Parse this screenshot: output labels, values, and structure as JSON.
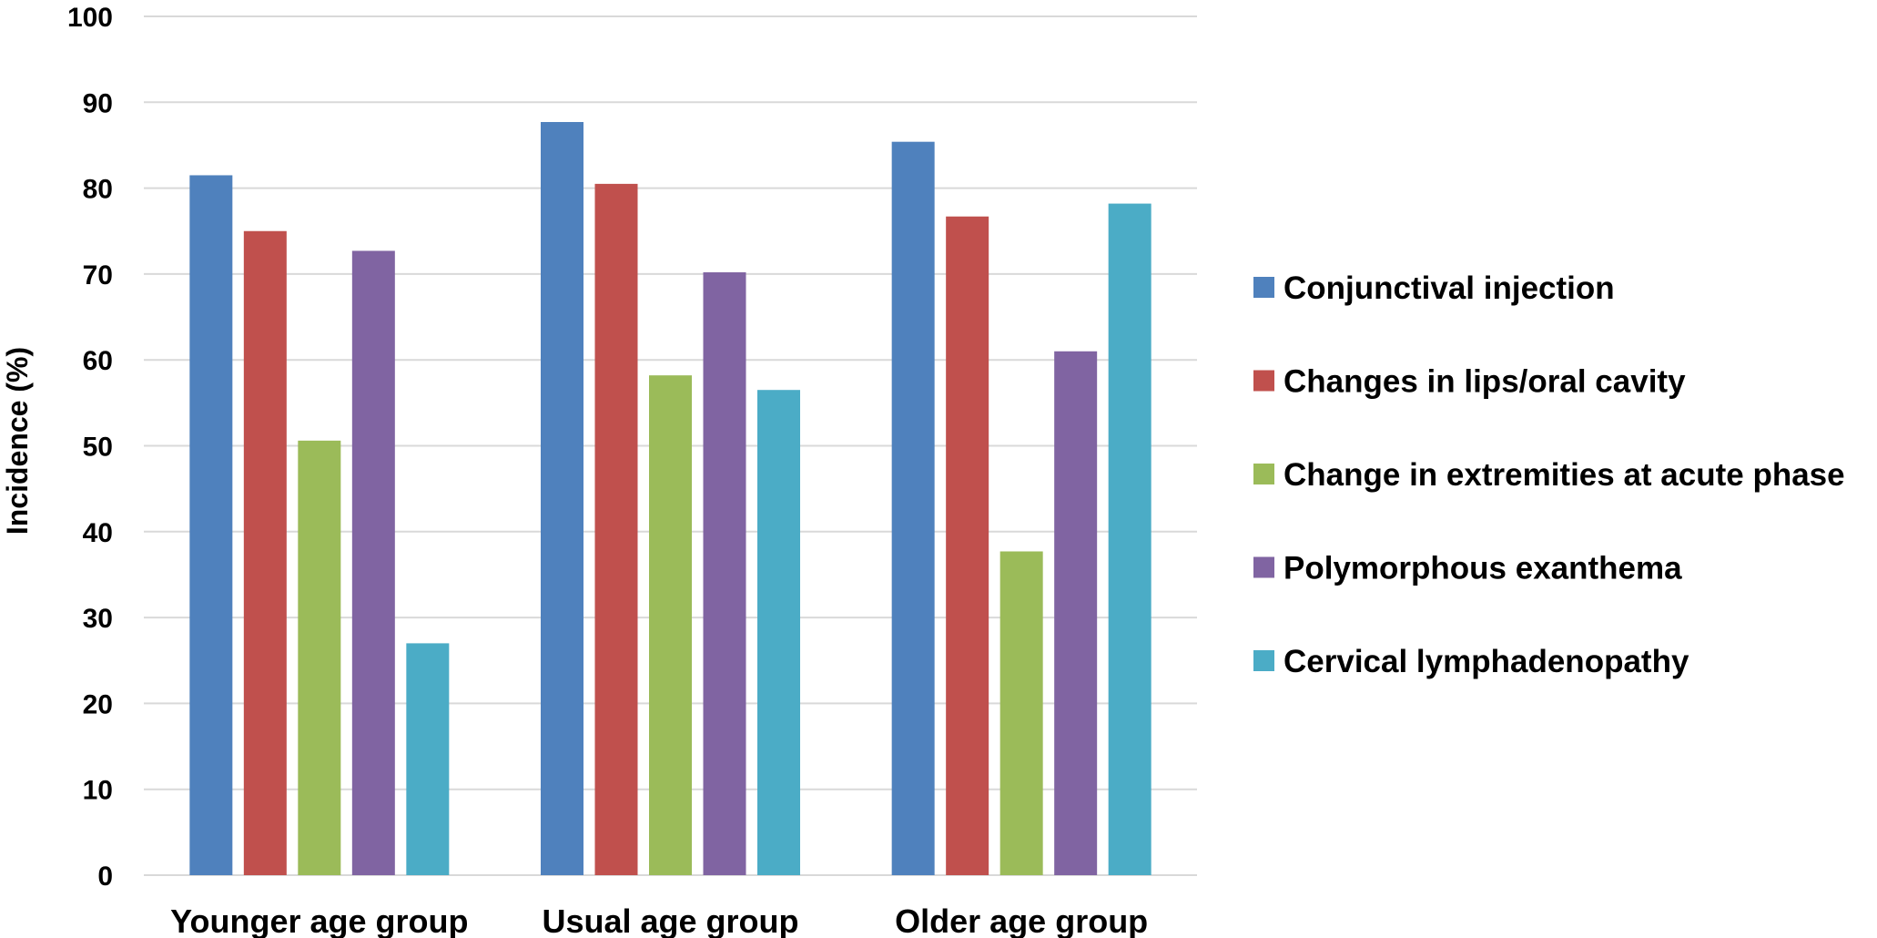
{
  "chart_data": {
    "type": "bar",
    "title": "",
    "xlabel": "",
    "ylabel": "Incidence (%)",
    "ylim": [
      0,
      100
    ],
    "yticks": [
      "0",
      "10",
      "20",
      "30",
      "40",
      "50",
      "60",
      "70",
      "80",
      "90",
      "100"
    ],
    "grid": true,
    "legend_position": "right",
    "categories": [
      "Younger age group",
      "Usual age group",
      "Older age group"
    ],
    "series": [
      {
        "name": "Conjunctival injection",
        "color": "#4f81bd",
        "values": [
          81.5,
          87.7,
          85.4
        ]
      },
      {
        "name": "Changes in lips/oral cavity",
        "color": "#c0504d",
        "values": [
          75.0,
          80.5,
          76.7
        ]
      },
      {
        "name": "Change in extremities at acute phase",
        "color": "#9bbb59",
        "values": [
          50.6,
          58.2,
          37.7
        ]
      },
      {
        "name": "Polymorphous exanthema",
        "color": "#8064a2",
        "values": [
          72.7,
          70.2,
          61.0
        ]
      },
      {
        "name": "Cervical lymphadenopathy",
        "color": "#4bacc6",
        "values": [
          27.0,
          56.5,
          78.2
        ]
      }
    ]
  }
}
